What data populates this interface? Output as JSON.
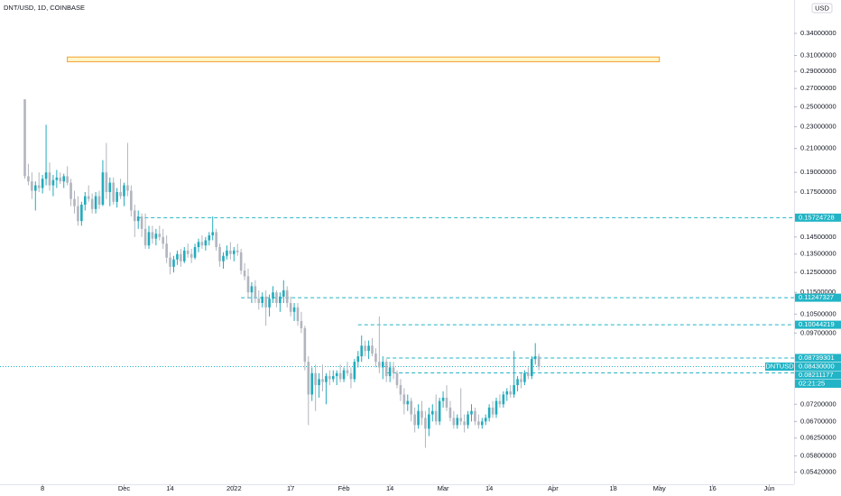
{
  "chart_data": {
    "type": "candlestick",
    "title": "DNT/USD, 1D, COINBASE",
    "currency": "USD",
    "log_scale": true,
    "up_color": "#22abbd",
    "down_color": "#b2b5be",
    "level_color": "#22b4c6",
    "ylim": [
      0.0519,
      0.391
    ],
    "xlim": [
      "2021-10-27",
      "2022-06-08"
    ],
    "yticks": [
      {
        "value": 0.34,
        "label": "0.34000000"
      },
      {
        "value": 0.31,
        "label": "0.31000000"
      },
      {
        "value": 0.29,
        "label": "0.29000000"
      },
      {
        "value": 0.27,
        "label": "0.27000000"
      },
      {
        "value": 0.25,
        "label": "0.25000000"
      },
      {
        "value": 0.23,
        "label": "0.23000000"
      },
      {
        "value": 0.21,
        "label": "0.21000000"
      },
      {
        "value": 0.19,
        "label": "0.19000000"
      },
      {
        "value": 0.175,
        "label": "0.17500000"
      },
      {
        "value": 0.145,
        "label": "0.14500000"
      },
      {
        "value": 0.135,
        "label": "0.13500000"
      },
      {
        "value": 0.125,
        "label": "0.12500000"
      },
      {
        "value": 0.115,
        "label": "0.11500000"
      },
      {
        "value": 0.105,
        "label": "0.10500000"
      },
      {
        "value": 0.097,
        "label": "0.09700000"
      },
      {
        "value": 0.072,
        "label": "0.07200000"
      },
      {
        "value": 0.067,
        "label": "0.06700000"
      },
      {
        "value": 0.0625,
        "label": "0.06250000"
      },
      {
        "value": 0.058,
        "label": "0.05800000"
      },
      {
        "value": 0.0542,
        "label": "0.05420000"
      }
    ],
    "xticks": [
      {
        "value": "2021-11-08",
        "label": "8"
      },
      {
        "value": "2021-12-01",
        "label": "Dec"
      },
      {
        "value": "2021-12-14",
        "label": "14"
      },
      {
        "value": "2022-01-01",
        "label": "2022"
      },
      {
        "value": "2022-01-17",
        "label": "17"
      },
      {
        "value": "2022-02-01",
        "label": "Feb"
      },
      {
        "value": "2022-02-14",
        "label": "14"
      },
      {
        "value": "2022-03-01",
        "label": "Mar"
      },
      {
        "value": "2022-03-14",
        "label": "14"
      },
      {
        "value": "2022-04-01",
        "label": "Apr"
      },
      {
        "value": "2022-04-18",
        "label": "18"
      },
      {
        "value": "2022-05-01",
        "label": "May"
      },
      {
        "value": "2022-05-16",
        "label": "16"
      },
      {
        "value": "2022-06-01",
        "label": "Jun"
      }
    ],
    "zone": {
      "start": "2021-11-15",
      "end": "2022-05-01",
      "low": 0.302,
      "high": 0.308
    },
    "levels": [
      {
        "value": 0.15724728,
        "start": "2021-12-05"
      },
      {
        "value": 0.11247327,
        "start": "2022-01-03"
      },
      {
        "value": 0.10044219,
        "start": "2022-02-05"
      },
      {
        "value": 0.08739301,
        "start": "2022-02-13"
      },
      {
        "value": 0.08211177,
        "start": "2022-02-13"
      }
    ],
    "last_price": {
      "value": 0.0843,
      "label": "0.08430000",
      "symbol": "DNTUSD",
      "countdown": "02:21:25"
    },
    "x": [
      "2021-11-03",
      "2021-11-04",
      "2021-11-05",
      "2021-11-06",
      "2021-11-07",
      "2021-11-08",
      "2021-11-09",
      "2021-11-10",
      "2021-11-11",
      "2021-11-12",
      "2021-11-13",
      "2021-11-14",
      "2021-11-15",
      "2021-11-16",
      "2021-11-17",
      "2021-11-18",
      "2021-11-19",
      "2021-11-20",
      "2021-11-21",
      "2021-11-22",
      "2021-11-23",
      "2021-11-24",
      "2021-11-25",
      "2021-11-26",
      "2021-11-27",
      "2021-11-28",
      "2021-11-29",
      "2021-11-30",
      "2021-12-01",
      "2021-12-02",
      "2021-12-03",
      "2021-12-04",
      "2021-12-05",
      "2021-12-06",
      "2021-12-07",
      "2021-12-08",
      "2021-12-09",
      "2021-12-10",
      "2021-12-11",
      "2021-12-12",
      "2021-12-13",
      "2021-12-14",
      "2021-12-15",
      "2021-12-16",
      "2021-12-17",
      "2021-12-18",
      "2021-12-19",
      "2021-12-20",
      "2021-12-21",
      "2021-12-22",
      "2021-12-23",
      "2021-12-24",
      "2021-12-25",
      "2021-12-26",
      "2021-12-27",
      "2021-12-28",
      "2021-12-29",
      "2021-12-30",
      "2021-12-31",
      "2022-01-01",
      "2022-01-02",
      "2022-01-03",
      "2022-01-04",
      "2022-01-05",
      "2022-01-06",
      "2022-01-07",
      "2022-01-08",
      "2022-01-09",
      "2022-01-10",
      "2022-01-11",
      "2022-01-12",
      "2022-01-13",
      "2022-01-14",
      "2022-01-15",
      "2022-01-16",
      "2022-01-17",
      "2022-01-18",
      "2022-01-19",
      "2022-01-20",
      "2022-01-21",
      "2022-01-22",
      "2022-01-23",
      "2022-01-24",
      "2022-01-25",
      "2022-01-26",
      "2022-01-27",
      "2022-01-28",
      "2022-01-29",
      "2022-01-30",
      "2022-01-31",
      "2022-02-01",
      "2022-02-02",
      "2022-02-03",
      "2022-02-04",
      "2022-02-05",
      "2022-02-06",
      "2022-02-07",
      "2022-02-08",
      "2022-02-09",
      "2022-02-10",
      "2022-02-11",
      "2022-02-12",
      "2022-02-13",
      "2022-02-14",
      "2022-02-15",
      "2022-02-16",
      "2022-02-17",
      "2022-02-18",
      "2022-02-19",
      "2022-02-20",
      "2022-02-21",
      "2022-02-22",
      "2022-02-23",
      "2022-02-24",
      "2022-02-25",
      "2022-02-26",
      "2022-02-27",
      "2022-02-28",
      "2022-03-01",
      "2022-03-02",
      "2022-03-03",
      "2022-03-04",
      "2022-03-05",
      "2022-03-06",
      "2022-03-07",
      "2022-03-08",
      "2022-03-09",
      "2022-03-10",
      "2022-03-11",
      "2022-03-12",
      "2022-03-13",
      "2022-03-14",
      "2022-03-15",
      "2022-03-16",
      "2022-03-17",
      "2022-03-18",
      "2022-03-19",
      "2022-03-20",
      "2022-03-21",
      "2022-03-22",
      "2022-03-23",
      "2022-03-24",
      "2022-03-25",
      "2022-03-26",
      "2022-03-27",
      "2022-03-28"
    ],
    "ohlc": [
      [
        0.258,
        0.258,
        0.185,
        0.187
      ],
      [
        0.187,
        0.197,
        0.18,
        0.183
      ],
      [
        0.183,
        0.19,
        0.17,
        0.176
      ],
      [
        0.176,
        0.183,
        0.162,
        0.18
      ],
      [
        0.18,
        0.19,
        0.175,
        0.178
      ],
      [
        0.178,
        0.188,
        0.174,
        0.185
      ],
      [
        0.185,
        0.232,
        0.18,
        0.19
      ],
      [
        0.19,
        0.198,
        0.176,
        0.18
      ],
      [
        0.18,
        0.188,
        0.172,
        0.184
      ],
      [
        0.184,
        0.192,
        0.178,
        0.186
      ],
      [
        0.186,
        0.19,
        0.181,
        0.183
      ],
      [
        0.183,
        0.189,
        0.178,
        0.187
      ],
      [
        0.187,
        0.195,
        0.18,
        0.182
      ],
      [
        0.182,
        0.185,
        0.165,
        0.17
      ],
      [
        0.17,
        0.176,
        0.16,
        0.165
      ],
      [
        0.165,
        0.172,
        0.152,
        0.155
      ],
      [
        0.155,
        0.168,
        0.152,
        0.166
      ],
      [
        0.166,
        0.175,
        0.162,
        0.172
      ],
      [
        0.172,
        0.18,
        0.168,
        0.17
      ],
      [
        0.17,
        0.174,
        0.16,
        0.163
      ],
      [
        0.163,
        0.175,
        0.16,
        0.172
      ],
      [
        0.172,
        0.176,
        0.163,
        0.166
      ],
      [
        0.166,
        0.2,
        0.165,
        0.19
      ],
      [
        0.19,
        0.215,
        0.17,
        0.175
      ],
      [
        0.175,
        0.186,
        0.165,
        0.182
      ],
      [
        0.182,
        0.186,
        0.166,
        0.168
      ],
      [
        0.168,
        0.178,
        0.164,
        0.175
      ],
      [
        0.175,
        0.185,
        0.17,
        0.172
      ],
      [
        0.172,
        0.182,
        0.165,
        0.18
      ],
      [
        0.18,
        0.215,
        0.172,
        0.176
      ],
      [
        0.176,
        0.18,
        0.158,
        0.162
      ],
      [
        0.162,
        0.166,
        0.145,
        0.155
      ],
      [
        0.155,
        0.162,
        0.15,
        0.158
      ],
      [
        0.158,
        0.16,
        0.145,
        0.15
      ],
      [
        0.15,
        0.16,
        0.138,
        0.14
      ],
      [
        0.14,
        0.152,
        0.138,
        0.148
      ],
      [
        0.148,
        0.152,
        0.141,
        0.144
      ],
      [
        0.144,
        0.15,
        0.14,
        0.147
      ],
      [
        0.147,
        0.152,
        0.143,
        0.145
      ],
      [
        0.145,
        0.15,
        0.138,
        0.141
      ],
      [
        0.141,
        0.146,
        0.13,
        0.133
      ],
      [
        0.133,
        0.136,
        0.124,
        0.128
      ],
      [
        0.128,
        0.134,
        0.125,
        0.132
      ],
      [
        0.132,
        0.137,
        0.129,
        0.135
      ],
      [
        0.135,
        0.138,
        0.128,
        0.131
      ],
      [
        0.131,
        0.139,
        0.13,
        0.137
      ],
      [
        0.137,
        0.141,
        0.133,
        0.135
      ],
      [
        0.135,
        0.138,
        0.13,
        0.133
      ],
      [
        0.133,
        0.141,
        0.132,
        0.139
      ],
      [
        0.139,
        0.144,
        0.136,
        0.142
      ],
      [
        0.142,
        0.146,
        0.138,
        0.14
      ],
      [
        0.14,
        0.145,
        0.137,
        0.143
      ],
      [
        0.143,
        0.148,
        0.14,
        0.146
      ],
      [
        0.146,
        0.158,
        0.143,
        0.148
      ],
      [
        0.148,
        0.15,
        0.137,
        0.139
      ],
      [
        0.139,
        0.141,
        0.128,
        0.131
      ],
      [
        0.131,
        0.136,
        0.127,
        0.134
      ],
      [
        0.134,
        0.14,
        0.132,
        0.137
      ],
      [
        0.137,
        0.142,
        0.132,
        0.135
      ],
      [
        0.135,
        0.139,
        0.131,
        0.137
      ],
      [
        0.137,
        0.141,
        0.134,
        0.136
      ],
      [
        0.136,
        0.138,
        0.124,
        0.126
      ],
      [
        0.126,
        0.13,
        0.121,
        0.123
      ],
      [
        0.123,
        0.127,
        0.112,
        0.115
      ],
      [
        0.115,
        0.12,
        0.11,
        0.118
      ],
      [
        0.118,
        0.121,
        0.11,
        0.112
      ],
      [
        0.112,
        0.116,
        0.107,
        0.11
      ],
      [
        0.11,
        0.115,
        0.108,
        0.113
      ],
      [
        0.113,
        0.116,
        0.1,
        0.108
      ],
      [
        0.108,
        0.114,
        0.104,
        0.112
      ],
      [
        0.112,
        0.118,
        0.11,
        0.115
      ],
      [
        0.115,
        0.116,
        0.108,
        0.11
      ],
      [
        0.11,
        0.115,
        0.106,
        0.113
      ],
      [
        0.113,
        0.121,
        0.11,
        0.116
      ],
      [
        0.116,
        0.118,
        0.108,
        0.11
      ],
      [
        0.11,
        0.113,
        0.104,
        0.106
      ],
      [
        0.106,
        0.11,
        0.102,
        0.108
      ],
      [
        0.108,
        0.11,
        0.1,
        0.102
      ],
      [
        0.102,
        0.106,
        0.097,
        0.099
      ],
      [
        0.099,
        0.1,
        0.083,
        0.086
      ],
      [
        0.086,
        0.088,
        0.066,
        0.075
      ],
      [
        0.075,
        0.084,
        0.073,
        0.082
      ],
      [
        0.082,
        0.085,
        0.07,
        0.078
      ],
      [
        0.078,
        0.082,
        0.074,
        0.08
      ],
      [
        0.08,
        0.085,
        0.076,
        0.079
      ],
      [
        0.079,
        0.082,
        0.072,
        0.081
      ],
      [
        0.081,
        0.083,
        0.078,
        0.08
      ],
      [
        0.08,
        0.083,
        0.079,
        0.081
      ],
      [
        0.081,
        0.083,
        0.078,
        0.082
      ],
      [
        0.082,
        0.085,
        0.079,
        0.08
      ],
      [
        0.08,
        0.084,
        0.079,
        0.083
      ],
      [
        0.083,
        0.086,
        0.081,
        0.082
      ],
      [
        0.082,
        0.084,
        0.077,
        0.08
      ],
      [
        0.08,
        0.087,
        0.079,
        0.086
      ],
      [
        0.086,
        0.09,
        0.084,
        0.088
      ],
      [
        0.088,
        0.096,
        0.086,
        0.092
      ],
      [
        0.092,
        0.094,
        0.088,
        0.09
      ],
      [
        0.09,
        0.094,
        0.087,
        0.092
      ],
      [
        0.092,
        0.095,
        0.088,
        0.089
      ],
      [
        0.089,
        0.091,
        0.084,
        0.086
      ],
      [
        0.086,
        0.104,
        0.082,
        0.084
      ],
      [
        0.084,
        0.088,
        0.08,
        0.086
      ],
      [
        0.086,
        0.087,
        0.079,
        0.081
      ],
      [
        0.081,
        0.086,
        0.079,
        0.084
      ],
      [
        0.084,
        0.086,
        0.08,
        0.082
      ],
      [
        0.082,
        0.083,
        0.077,
        0.078
      ],
      [
        0.078,
        0.08,
        0.073,
        0.075
      ],
      [
        0.075,
        0.077,
        0.069,
        0.072
      ],
      [
        0.072,
        0.075,
        0.07,
        0.073
      ],
      [
        0.073,
        0.074,
        0.067,
        0.069
      ],
      [
        0.069,
        0.071,
        0.064,
        0.066
      ],
      [
        0.066,
        0.072,
        0.065,
        0.07
      ],
      [
        0.07,
        0.073,
        0.066,
        0.068
      ],
      [
        0.068,
        0.07,
        0.06,
        0.065
      ],
      [
        0.065,
        0.071,
        0.063,
        0.069
      ],
      [
        0.069,
        0.072,
        0.067,
        0.07
      ],
      [
        0.07,
        0.075,
        0.066,
        0.067
      ],
      [
        0.067,
        0.074,
        0.066,
        0.073
      ],
      [
        0.073,
        0.076,
        0.071,
        0.074
      ],
      [
        0.074,
        0.078,
        0.07,
        0.071
      ],
      [
        0.071,
        0.073,
        0.067,
        0.068
      ],
      [
        0.068,
        0.07,
        0.065,
        0.066
      ],
      [
        0.066,
        0.069,
        0.065,
        0.068
      ],
      [
        0.068,
        0.077,
        0.066,
        0.067
      ],
      [
        0.067,
        0.069,
        0.064,
        0.066
      ],
      [
        0.066,
        0.07,
        0.065,
        0.069
      ],
      [
        0.069,
        0.072,
        0.067,
        0.07
      ],
      [
        0.07,
        0.071,
        0.066,
        0.067
      ],
      [
        0.067,
        0.069,
        0.065,
        0.066
      ],
      [
        0.066,
        0.068,
        0.065,
        0.067
      ],
      [
        0.067,
        0.069,
        0.066,
        0.068
      ],
      [
        0.068,
        0.072,
        0.067,
        0.071
      ],
      [
        0.071,
        0.073,
        0.068,
        0.069
      ],
      [
        0.069,
        0.074,
        0.068,
        0.073
      ],
      [
        0.073,
        0.075,
        0.071,
        0.072
      ],
      [
        0.072,
        0.076,
        0.071,
        0.075
      ],
      [
        0.075,
        0.077,
        0.073,
        0.076
      ],
      [
        0.076,
        0.078,
        0.074,
        0.075
      ],
      [
        0.075,
        0.09,
        0.074,
        0.078
      ],
      [
        0.078,
        0.081,
        0.076,
        0.08
      ],
      [
        0.08,
        0.082,
        0.077,
        0.079
      ],
      [
        0.079,
        0.083,
        0.078,
        0.082
      ],
      [
        0.082,
        0.084,
        0.08,
        0.081
      ],
      [
        0.081,
        0.088,
        0.08,
        0.087
      ],
      [
        0.087,
        0.093,
        0.085,
        0.088
      ],
      [
        0.088,
        0.089,
        0.083,
        0.0843
      ]
    ]
  }
}
